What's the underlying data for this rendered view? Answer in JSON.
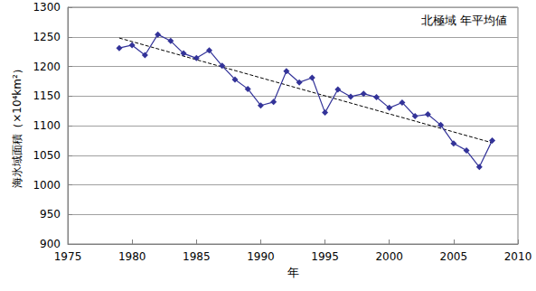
{
  "chart_data": {
    "type": "line",
    "annotation": "北極域 年平均値",
    "x_label": "年",
    "y_label": "海氷域面積（×10⁴km²）",
    "xlim": [
      1975,
      2010
    ],
    "xticks": [
      1975,
      1980,
      1985,
      1990,
      1995,
      2000,
      2005,
      2010
    ],
    "ylim": [
      900,
      1300
    ],
    "yticks": [
      900,
      950,
      1000,
      1050,
      1100,
      1150,
      1200,
      1250,
      1300
    ],
    "grid": true,
    "series": [
      {
        "color": "#333399",
        "marker": "diamond",
        "line_style": "solid",
        "x": [
          1979,
          1980,
          1981,
          1982,
          1983,
          1984,
          1985,
          1986,
          1987,
          1988,
          1989,
          1990,
          1991,
          1992,
          1993,
          1994,
          1995,
          1996,
          1997,
          1998,
          1999,
          2000,
          2001,
          2002,
          2003,
          2004,
          2005,
          2006,
          2007,
          2008
        ],
        "values": [
          1231,
          1236,
          1219,
          1254,
          1243,
          1222,
          1214,
          1227,
          1201,
          1178,
          1162,
          1134,
          1140,
          1192,
          1173,
          1181,
          1122,
          1161,
          1149,
          1154,
          1148,
          1130,
          1139,
          1116,
          1119,
          1101,
          1070,
          1058,
          1030,
          1075
        ]
      },
      {
        "color": "#000000",
        "marker": "none",
        "line_style": "dashed",
        "x": [
          1979,
          2008
        ],
        "values": [
          1248,
          1071
        ]
      }
    ]
  }
}
